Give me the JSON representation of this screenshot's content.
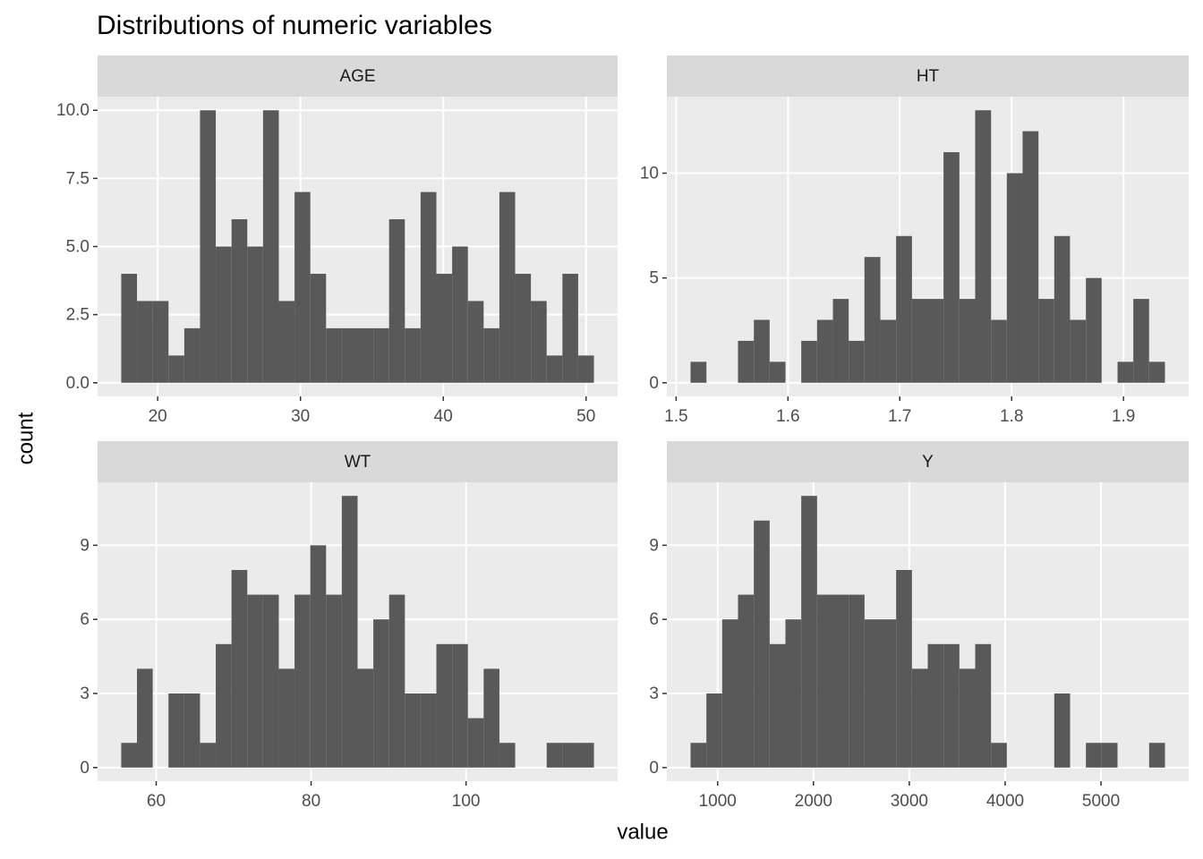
{
  "title": "Distributions of numeric variables",
  "xlabel": "value",
  "ylabel": "count",
  "chart_data": [
    {
      "type": "histogram",
      "title": "AGE",
      "color": "#595959",
      "grid": true,
      "bins": [
        17.4483,
        18.5517,
        19.6552,
        20.7586,
        21.8621,
        22.9655,
        24.069,
        25.1724,
        26.2759,
        27.3793,
        28.4828,
        29.5862,
        30.6897,
        31.7931,
        32.8966,
        34.0,
        35.1034,
        36.2069,
        37.3103,
        38.4138,
        39.5172,
        40.6207,
        41.7241,
        42.8276,
        43.931,
        45.0345,
        46.1379,
        47.2414,
        48.3448,
        49.4483,
        50.5517
      ],
      "counts": [
        4,
        3,
        3,
        1,
        2,
        10,
        5,
        6,
        5,
        10,
        3,
        7,
        4,
        2,
        2,
        2,
        2,
        6,
        2,
        7,
        4,
        5,
        3,
        2,
        7,
        4,
        3,
        1,
        4,
        1
      ],
      "xlim": [
        15.79,
        52.21
      ],
      "ylim": [
        -0.5,
        10.5
      ],
      "xticks": [
        20,
        30,
        40,
        50
      ],
      "yticks": [
        {
          "value": 0,
          "label": "0.0"
        },
        {
          "value": 2.5,
          "label": "2.5"
        },
        {
          "value": 5,
          "label": "5.0"
        },
        {
          "value": 7.5,
          "label": "7.5"
        },
        {
          "value": 10,
          "label": "10.0"
        }
      ]
    },
    {
      "type": "histogram",
      "title": "HT",
      "color": "#595959",
      "grid": true,
      "bins": [
        1.5129,
        1.5271,
        1.5412,
        1.5553,
        1.5695,
        1.5836,
        1.5978,
        1.6119,
        1.626,
        1.6402,
        1.6543,
        1.6684,
        1.6826,
        1.6967,
        1.7109,
        1.725,
        1.7391,
        1.7533,
        1.7674,
        1.7816,
        1.7957,
        1.8098,
        1.824,
        1.8381,
        1.8522,
        1.8664,
        1.8805,
        1.8947,
        1.9088,
        1.9229,
        1.9371
      ],
      "counts": [
        1,
        0,
        0,
        2,
        3,
        1,
        0,
        2,
        3,
        4,
        2,
        6,
        3,
        7,
        4,
        4,
        11,
        4,
        13,
        3,
        10,
        12,
        4,
        7,
        3,
        5,
        0,
        1,
        4,
        1
      ],
      "xlim": [
        1.4917,
        1.9583
      ],
      "ylim": [
        -0.65,
        13.65
      ],
      "xticks": [
        1.5,
        1.6,
        1.7,
        1.8,
        1.9
      ],
      "yticks": [
        0,
        5,
        10
      ]
    },
    {
      "type": "histogram",
      "title": "WT",
      "color": "#595959",
      "grid": true,
      "bins": [
        55.4828,
        57.5172,
        59.5517,
        61.5862,
        63.6207,
        65.6552,
        67.6897,
        69.7241,
        71.7586,
        73.7931,
        75.8276,
        77.8621,
        79.8966,
        81.931,
        83.9655,
        86.0,
        88.0345,
        90.069,
        92.1034,
        94.1379,
        96.1724,
        98.2069,
        100.2414,
        102.2759,
        104.3103,
        106.3448,
        108.3793,
        110.4138,
        112.4483,
        114.4828,
        116.5172
      ],
      "counts": [
        1,
        4,
        0,
        3,
        3,
        1,
        5,
        8,
        7,
        7,
        4,
        7,
        9,
        7,
        11,
        4,
        6,
        7,
        3,
        3,
        5,
        5,
        2,
        4,
        1,
        0,
        0,
        1,
        1,
        1
      ],
      "xlim": [
        52.43,
        119.57
      ],
      "ylim": [
        -0.55,
        11.55
      ],
      "xticks": [
        60,
        80,
        100
      ],
      "yticks": [
        0,
        3,
        6,
        9
      ]
    },
    {
      "type": "histogram",
      "title": "Y",
      "color": "#595959",
      "grid": true,
      "bins": [
        717.5,
        882.5,
        1047.5,
        1212.5,
        1377.5,
        1542.5,
        1707.5,
        1872.5,
        2037.5,
        2202.5,
        2367.5,
        2532.5,
        2697.5,
        2862.5,
        3027.5,
        3192.5,
        3357.5,
        3522.5,
        3687.5,
        3852.5,
        4017.5,
        4182.5,
        4347.5,
        4512.5,
        4677.5,
        4842.5,
        5007.5,
        5172.5,
        5337.5,
        5502.5,
        5667.5
      ],
      "counts": [
        1,
        3,
        6,
        7,
        10,
        5,
        6,
        11,
        7,
        7,
        7,
        6,
        6,
        8,
        4,
        5,
        5,
        4,
        5,
        1,
        0,
        0,
        0,
        3,
        0,
        1,
        1,
        0,
        0,
        1
      ],
      "xlim": [
        470,
        5915
      ],
      "ylim": [
        -0.55,
        11.55
      ],
      "xticks": [
        1000,
        2000,
        3000,
        4000,
        5000
      ],
      "yticks": [
        0,
        3,
        6,
        9
      ]
    }
  ]
}
